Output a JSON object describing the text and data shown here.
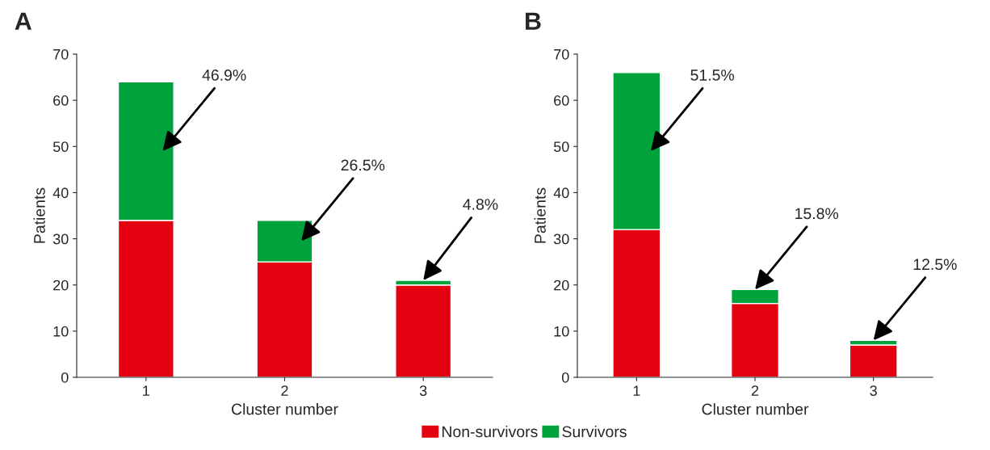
{
  "chart_data": [
    {
      "type": "bar",
      "title": "A",
      "stacked": true,
      "categories": [
        "1",
        "2",
        "3"
      ],
      "xlabel": "Cluster number",
      "ylabel": "Patients",
      "ylim": [
        0,
        70
      ],
      "yticks": [
        0,
        10,
        20,
        30,
        40,
        50,
        60,
        70
      ],
      "legend": "bottom",
      "series": [
        {
          "name": "Non-survivors",
          "color": "#e3000f",
          "values": [
            34,
            25,
            20
          ]
        },
        {
          "name": "Survivors",
          "color": "#00a23b",
          "values": [
            30,
            9,
            1
          ]
        }
      ],
      "annotations": [
        "46.9%",
        "26.5%",
        {
          "text": "4.8%",
          "x": "3",
          "y": 21
        }
      ]
    },
    {
      "type": "bar",
      "title": "B",
      "stacked": true,
      "categories": [
        "1",
        "2",
        "3"
      ],
      "xlabel": "Cluster number",
      "ylabel": "Patients",
      "ylim": [
        0,
        70
      ],
      "yticks": [
        0,
        10,
        20,
        30,
        40,
        50,
        60,
        70
      ],
      "series": [
        {
          "name": "Non-survivors",
          "color": "#e3000f",
          "values": [
            32,
            16,
            7
          ]
        },
        {
          "name": "Survivors",
          "color": "#00a23b",
          "values": [
            34,
            3,
            1
          ]
        }
      ],
      "annotations": [
        "51.5%",
        {
          "text": "15.8%",
          "x": "2",
          "y": 19
        },
        {
          "text": "12.5%",
          "x": "3",
          "y": 8
        }
      ]
    }
  ]
}
